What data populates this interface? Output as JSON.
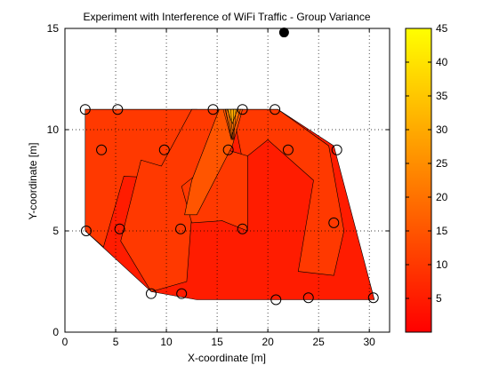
{
  "chart_data": {
    "type": "contour",
    "title": "Experiment with Interference of WiFi Traffic - Group Variance",
    "xlabel": "X-coordinate [m]",
    "ylabel": "Y-coordinate [m]",
    "xlim": [
      0,
      32
    ],
    "ylim": [
      0,
      15
    ],
    "xticks": [
      0,
      5,
      10,
      15,
      20,
      25,
      30
    ],
    "yticks": [
      0,
      5,
      10,
      15
    ],
    "grid": true,
    "grid_style": "dotted",
    "colormap": "autumn",
    "colorbar": {
      "range": [
        0,
        45
      ],
      "ticks": [
        5,
        10,
        15,
        20,
        25,
        30,
        35,
        40,
        45
      ],
      "low_color": "#ff0000",
      "high_color": "#ffff00"
    },
    "measurement_points": [
      {
        "x": 2,
        "y": 11
      },
      {
        "x": 5.2,
        "y": 11
      },
      {
        "x": 14.6,
        "y": 11
      },
      {
        "x": 17.5,
        "y": 11
      },
      {
        "x": 20.7,
        "y": 11
      },
      {
        "x": 3.6,
        "y": 9
      },
      {
        "x": 9.8,
        "y": 9
      },
      {
        "x": 16.1,
        "y": 9
      },
      {
        "x": 22,
        "y": 9
      },
      {
        "x": 26.8,
        "y": 9
      },
      {
        "x": 2.1,
        "y": 5
      },
      {
        "x": 5.4,
        "y": 5.1
      },
      {
        "x": 11.4,
        "y": 5.1
      },
      {
        "x": 17.5,
        "y": 5.1
      },
      {
        "x": 26.5,
        "y": 5.4
      },
      {
        "x": 8.5,
        "y": 1.9
      },
      {
        "x": 11.5,
        "y": 1.9
      },
      {
        "x": 20.8,
        "y": 1.6
      },
      {
        "x": 24,
        "y": 1.7
      },
      {
        "x": 30.4,
        "y": 1.7
      }
    ],
    "access_point": {
      "x": 21.6,
      "y": 14.8
    },
    "contour_regions": [
      {
        "level": 5,
        "polygon": [
          [
            2,
            11
          ],
          [
            21,
            11
          ],
          [
            26.5,
            9.2
          ],
          [
            30.5,
            1.6
          ],
          [
            13,
            1.6
          ],
          [
            8.5,
            2
          ],
          [
            2,
            5
          ]
        ]
      },
      {
        "level": 10,
        "polygon": [
          [
            2,
            11
          ],
          [
            13,
            11
          ],
          [
            9.8,
            7.6
          ],
          [
            5.8,
            7.7
          ],
          [
            3.8,
            4.2
          ],
          [
            2,
            5
          ]
        ]
      },
      {
        "level": 10,
        "polygon": [
          [
            12.5,
            11
          ],
          [
            16,
            11
          ],
          [
            12.5,
            5.8
          ],
          [
            12,
            2.5
          ],
          [
            8.5,
            2
          ],
          [
            5.5,
            4.5
          ],
          [
            7.5,
            8.5
          ],
          [
            9.5,
            8.2
          ]
        ]
      },
      {
        "level": 10,
        "polygon": [
          [
            16.5,
            11
          ],
          [
            21,
            11
          ],
          [
            26,
            9.2
          ],
          [
            27.5,
            5
          ],
          [
            26.5,
            2.8
          ],
          [
            23,
            3
          ],
          [
            24.5,
            7.5
          ],
          [
            20,
            9.5
          ],
          [
            17.5,
            8.5
          ]
        ]
      },
      {
        "level": 10,
        "polygon": [
          [
            16,
            9
          ],
          [
            18,
            8.7
          ],
          [
            18,
            5
          ],
          [
            15.5,
            5.5
          ],
          [
            12.5,
            5.4
          ],
          [
            11.5,
            7.2
          ]
        ]
      },
      {
        "level": 15,
        "polygon": [
          [
            15.2,
            11
          ],
          [
            17.5,
            11
          ],
          [
            16.5,
            9.2
          ],
          [
            13,
            5.8
          ],
          [
            11.8,
            5.8
          ],
          [
            12.5,
            7.5
          ]
        ]
      },
      {
        "level": 20,
        "polygon": [
          [
            15.8,
            11
          ],
          [
            17.3,
            11
          ],
          [
            16.4,
            9.6
          ]
        ]
      },
      {
        "level": 30,
        "polygon": [
          [
            16,
            11
          ],
          [
            17,
            11
          ],
          [
            16.5,
            10.3
          ]
        ]
      }
    ]
  }
}
